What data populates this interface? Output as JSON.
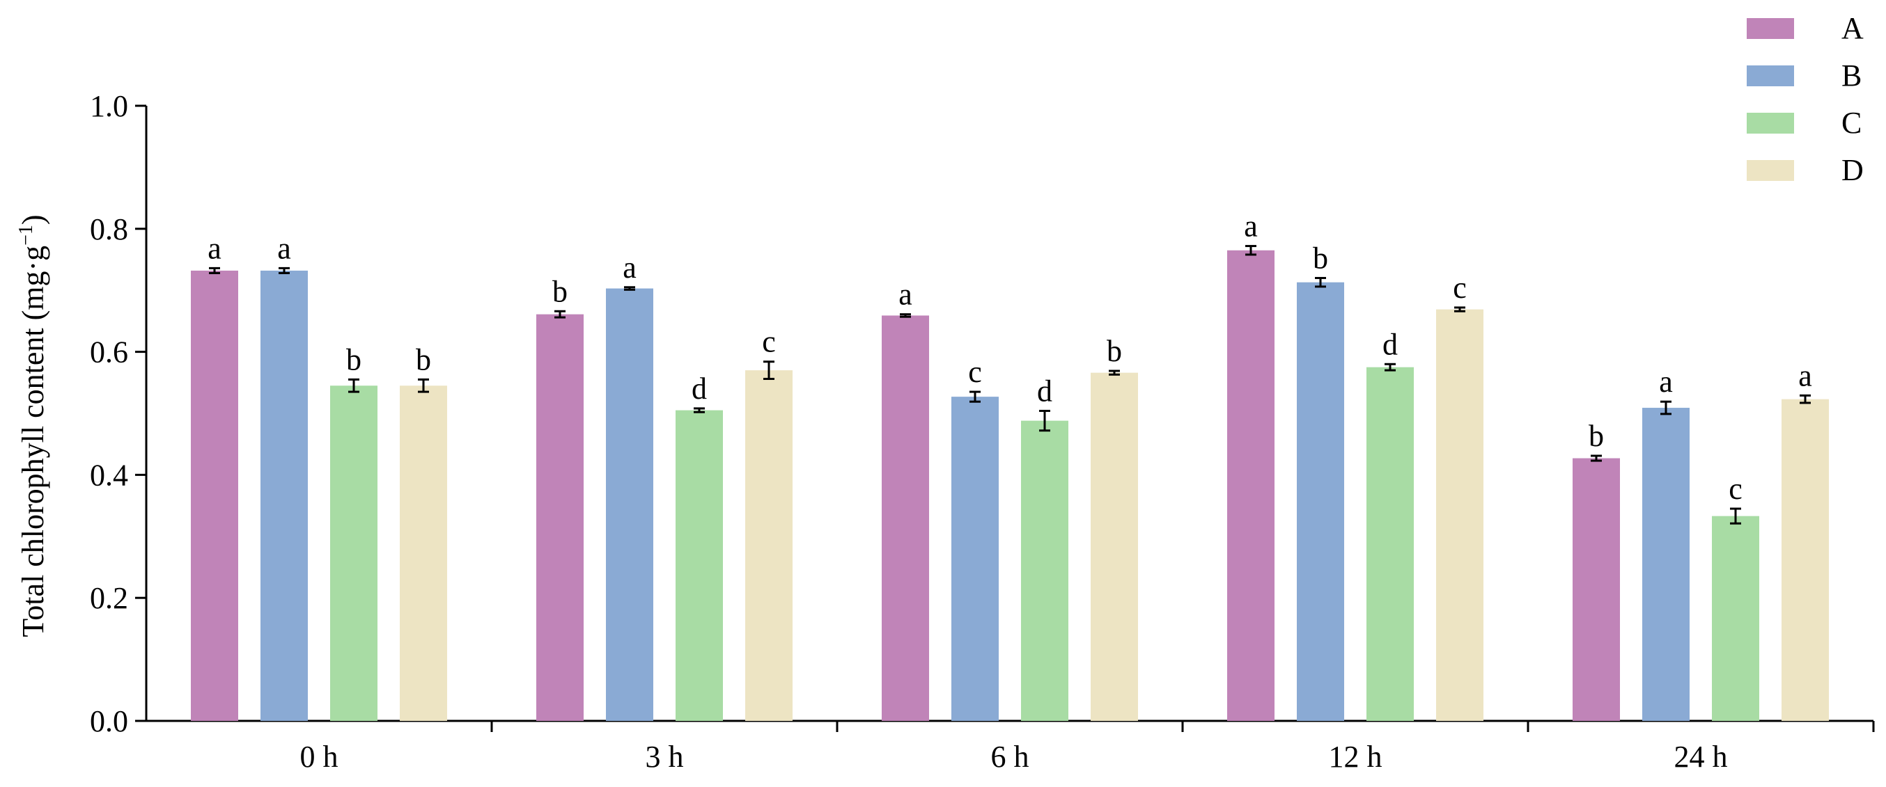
{
  "chart_data": {
    "type": "bar",
    "ylabel_main": "Total chlorophyll content (mg·g",
    "ylabel_sup": "−1",
    "ylabel_close": ")",
    "xlabel": "",
    "ylim": [
      0,
      1.0
    ],
    "yticks": [
      "0.0",
      "0.2",
      "0.4",
      "0.6",
      "0.8",
      "1.0"
    ],
    "ytick_values": [
      0,
      0.2,
      0.4,
      0.6,
      0.8,
      1.0
    ],
    "categories": [
      "0 h",
      "3 h",
      "6 h",
      "12 h",
      "24 h"
    ],
    "legend_position": "top-right",
    "series": [
      {
        "name": "A",
        "color": "#c084b8",
        "values": [
          0.732,
          0.661,
          0.659,
          0.765,
          0.427
        ],
        "errors": [
          0.004,
          0.005,
          0.002,
          0.007,
          0.004
        ],
        "labels": [
          "a",
          "b",
          "a",
          "a",
          "b"
        ]
      },
      {
        "name": "B",
        "color": "#8aaad4",
        "values": [
          0.732,
          0.703,
          0.527,
          0.713,
          0.509
        ],
        "errors": [
          0.004,
          0.002,
          0.008,
          0.007,
          0.01
        ],
        "labels": [
          "a",
          "a",
          "c",
          "b",
          "a"
        ]
      },
      {
        "name": "C",
        "color": "#a8dca4",
        "values": [
          0.545,
          0.505,
          0.488,
          0.575,
          0.333
        ],
        "errors": [
          0.01,
          0.003,
          0.016,
          0.005,
          0.012
        ],
        "labels": [
          "b",
          "d",
          "d",
          "d",
          "c"
        ]
      },
      {
        "name": "D",
        "color": "#ede4c3",
        "values": [
          0.545,
          0.57,
          0.566,
          0.669,
          0.523
        ],
        "errors": [
          0.01,
          0.014,
          0.003,
          0.003,
          0.006
        ],
        "labels": [
          "b",
          "c",
          "b",
          "c",
          "a"
        ]
      }
    ]
  }
}
